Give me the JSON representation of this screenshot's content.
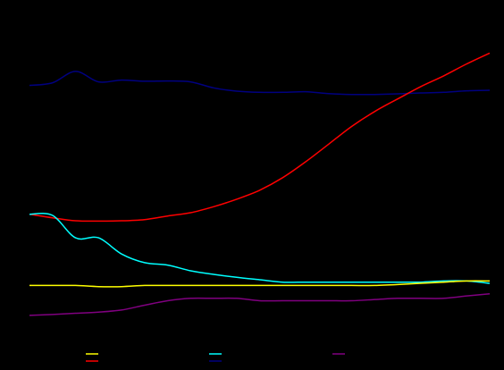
{
  "chart_data": {
    "type": "line",
    "title": "",
    "xlabel": "",
    "ylabel": "",
    "grid": false,
    "legend_position": "bottom",
    "x": [
      0,
      5,
      10,
      15,
      20,
      25,
      30,
      35,
      40,
      45,
      50,
      55,
      60,
      65,
      70,
      75,
      80,
      85,
      90,
      95,
      100
    ],
    "xlim": [
      0,
      100
    ],
    "ylim": [
      0,
      100
    ],
    "series": [
      {
        "color": "#000080",
        "values": [
          83.4,
          84.3,
          88.1,
          84.6,
          85.2,
          84.8,
          84.9,
          84.6,
          82.6,
          81.5,
          81.1,
          81.1,
          81.3,
          80.7,
          80.4,
          80.4,
          80.6,
          80.9,
          81.1,
          81.6,
          81.8
        ]
      },
      {
        "color": "#ff0000",
        "values": [
          40.4,
          39.2,
          38.2,
          38.1,
          38.2,
          38.6,
          39.8,
          40.9,
          42.9,
          45.4,
          48.4,
          52.6,
          57.9,
          63.8,
          69.7,
          74.7,
          78.9,
          83.0,
          86.6,
          90.6,
          94.2
        ]
      },
      {
        "color": "#00ffff",
        "values": [
          40.4,
          40.0,
          32.5,
          32.5,
          27.1,
          24.2,
          23.4,
          21.5,
          20.3,
          19.3,
          18.5,
          17.7,
          17.7,
          17.7,
          17.7,
          17.7,
          17.7,
          17.7,
          18.1,
          18.1,
          17.3
        ]
      },
      {
        "color": "#ffff00",
        "values": [
          16.6,
          16.6,
          16.6,
          16.2,
          16.2,
          16.6,
          16.6,
          16.6,
          16.6,
          16.6,
          16.6,
          16.6,
          16.6,
          16.6,
          16.6,
          16.6,
          16.9,
          17.3,
          17.7,
          18.1,
          18.1
        ]
      },
      {
        "color": "#800080",
        "values": [
          6.6,
          6.9,
          7.3,
          7.7,
          8.4,
          10.0,
          11.5,
          12.3,
          12.3,
          12.3,
          11.5,
          11.5,
          11.5,
          11.5,
          11.5,
          11.9,
          12.3,
          12.3,
          12.3,
          13.1,
          13.8
        ]
      }
    ],
    "legend_entries": [
      {
        "color": "#ffff00"
      },
      {
        "color": "#ff0000"
      },
      {
        "color": "#00ffff"
      },
      {
        "color": "#000080"
      },
      {
        "color": "#800080"
      }
    ]
  }
}
